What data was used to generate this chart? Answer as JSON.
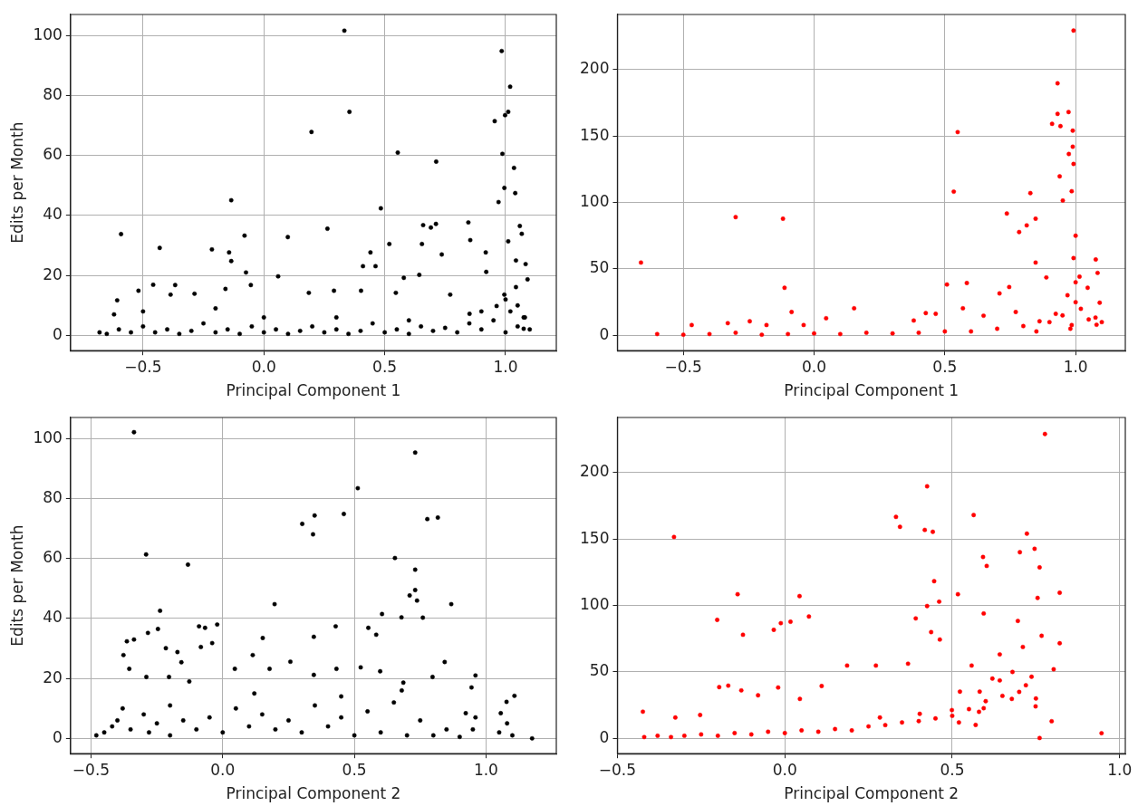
{
  "chart_data": [
    {
      "type": "scatter",
      "xlabel": "Principal Component 1",
      "ylabel": "Edits per Month",
      "color": "#000000",
      "marker": "circle",
      "grid": true,
      "xlim": [
        -0.8,
        1.21
      ],
      "ylim": [
        -5.1,
        107.1
      ],
      "xticks": [
        {
          "value": -0.5,
          "label": "−0.5"
        },
        {
          "value": 0,
          "label": "0.0"
        },
        {
          "value": 0.5,
          "label": "0.5"
        },
        {
          "value": 1,
          "label": "1.0"
        }
      ],
      "yticks": [
        0,
        20,
        40,
        60,
        80,
        100
      ],
      "x": [
        0.354,
        0.333,
        0.984,
        1.019,
        0.955,
        0.998,
        1.011,
        0.197,
        0.554,
        0.713,
        0.987,
        1.035,
        -0.135,
        0.484,
        0.995,
        1.04,
        0.971,
        -0.591,
        -0.431,
        -0.215,
        -0.08,
        0.099,
        0.263,
        0.659,
        0.712,
        0.691,
        0.846,
        0.519,
        0.854,
        0.654,
        -0.144,
        -0.135,
        0.441,
        0.736,
        0.918,
        1.059,
        1.067,
        1.011,
        1.043,
        1.083,
        0.41,
        0.462,
        -0.074,
        0.059,
        0.643,
        0.579,
        0.92,
        -0.367,
        -0.458,
        -0.159,
        -0.054,
        -0.607,
        -0.519,
        -0.386,
        -0.287,
        0.186,
        0.29,
        0.402,
        0.546,
        0.771,
        1.043,
        1.091,
        0.995,
        0.963,
        0.851,
        1.075,
        1.075,
        -0.68,
        -0.65,
        -0.6,
        -0.55,
        -0.5,
        -0.45,
        -0.4,
        -0.35,
        -0.3,
        -0.25,
        -0.2,
        -0.15,
        -0.1,
        -0.05,
        0,
        0.05,
        0.1,
        0.15,
        0.2,
        0.25,
        0.3,
        0.35,
        0.4,
        0.45,
        0.5,
        0.55,
        0.6,
        0.65,
        0.7,
        0.75,
        0.8,
        0.85,
        0.9,
        0.95,
        1.0,
        1.02,
        1.05,
        1.08,
        1.1,
        -0.62,
        -0.5,
        -0.2,
        0,
        0.3,
        0.6,
        0.9,
        1.0,
        1.05
      ],
      "values": [
        74.6,
        101.7,
        94.9,
        83,
        71.5,
        73.5,
        74.6,
        67.9,
        61,
        58,
        60.6,
        55.9,
        45.1,
        42.4,
        49.2,
        47.5,
        44.5,
        33.8,
        29.2,
        28.7,
        33.3,
        32.8,
        35.6,
        36.8,
        37.2,
        36,
        37.7,
        30.5,
        31.8,
        30.5,
        27.7,
        24.8,
        27.7,
        27,
        27.7,
        36.5,
        33.9,
        31.4,
        25,
        23.8,
        23.1,
        23.1,
        21,
        19.7,
        20.2,
        19.2,
        21.2,
        16.8,
        16.9,
        15.5,
        16.8,
        11.7,
        14.9,
        13.6,
        13.9,
        14.2,
        14.9,
        14.9,
        14.2,
        13.6,
        16.1,
        18.7,
        13.6,
        9.8,
        7.2,
        6,
        2.2,
        1,
        0.5,
        2,
        1,
        3,
        1,
        2,
        0.5,
        1.5,
        4,
        1,
        2,
        0.5,
        3,
        1,
        2,
        0.5,
        1.5,
        3,
        1,
        2,
        0.5,
        1.5,
        4,
        1,
        2,
        0.5,
        3,
        1.5,
        2.5,
        1,
        4,
        2,
        5,
        1,
        8,
        3,
        6,
        2,
        7,
        8,
        9,
        6,
        6,
        5,
        8,
        12,
        10
      ]
    },
    {
      "type": "scatter",
      "xlabel": "Principal Component 1",
      "color": "#ff0000",
      "marker": "circle",
      "grid": true,
      "xlim": [
        -0.752,
        1.19
      ],
      "ylim": [
        -11.5,
        241.5
      ],
      "xticks": [
        {
          "value": -0.5,
          "label": "−0.5"
        },
        {
          "value": 0,
          "label": "0.0"
        },
        {
          "value": 0.5,
          "label": "0.5"
        },
        {
          "value": 1,
          "label": "1.0"
        }
      ],
      "yticks": [
        0,
        50,
        100,
        150,
        200
      ],
      "x": [
        0.992,
        0.931,
        0.931,
        0.973,
        0.91,
        0.942,
        0.989,
        0.549,
        0.989,
        0.974,
        0.992,
        0.939,
        0.534,
        0.827,
        0.951,
        0.985,
        0.737,
        0.847,
        0.813,
        0.784,
        -0.3,
        -0.119,
        -0.662,
        -0.113,
        -0.086,
        0.046,
        0.153,
        0.508,
        0.584,
        0.569,
        0.847,
        1.077,
        1.084,
        0.746,
        0.709,
        0.888,
        1,
        0.992,
        1.015,
        1.046,
        1.092,
        1.076,
        0.969,
        0.924,
        0.862,
        0.985,
        -0.468,
        -0.33,
        -0.246,
        -0.182,
        -0.04,
        0.381,
        0.427,
        0.465,
        0.648,
        0.771,
        -0.6,
        -0.5,
        -0.4,
        -0.3,
        -0.2,
        -0.1,
        0,
        0.1,
        0.2,
        0.3,
        0.4,
        0.5,
        0.6,
        0.7,
        0.8,
        0.9,
        0.95,
        1.0,
        1.0,
        1.02,
        1.05,
        1.08,
        1.1,
        0.98,
        0.85
      ],
      "values": [
        229.4,
        189.7,
        166.7,
        168.1,
        159.2,
        157.5,
        154.1,
        153,
        142,
        136.5,
        129,
        119.7,
        108.2,
        107.1,
        101.5,
        108.5,
        91.7,
        87.8,
        82.8,
        77.8,
        89,
        87.8,
        54.8,
        35.8,
        17.6,
        12.9,
        20.4,
        38.3,
        39.4,
        20.4,
        54.8,
        57.1,
        47,
        36.4,
        31.6,
        43.6,
        75,
        58.2,
        44.2,
        35.8,
        24.6,
        13.4,
        30.2,
        16.2,
        10.6,
        7.8,
        7.8,
        9.2,
        10.6,
        7.8,
        7.8,
        11.2,
        16.8,
        16.2,
        14.8,
        17.6,
        1,
        0.5,
        1,
        2,
        0.5,
        1,
        1.5,
        1,
        2,
        1.5,
        2,
        3,
        3,
        5,
        7,
        10,
        15,
        25,
        40,
        20,
        12,
        8,
        10,
        5,
        3
      ]
    },
    {
      "type": "scatter",
      "xlabel": "Principal Component 2",
      "ylabel": "Edits per Month",
      "color": "#000000",
      "marker": "circle",
      "grid": true,
      "xlim": [
        -0.578,
        1.267
      ],
      "ylim": [
        -5.1,
        107.1
      ],
      "xticks": [
        {
          "value": -0.5,
          "label": "−0.5"
        },
        {
          "value": 0,
          "label": "0.0"
        },
        {
          "value": 0.5,
          "label": "0.5"
        },
        {
          "value": 1,
          "label": "1.0"
        }
      ],
      "yticks": [
        0,
        20,
        40,
        60,
        80,
        100
      ],
      "x": [
        -0.337,
        0.731,
        0.513,
        0.46,
        0.349,
        0.302,
        0.343,
        0.777,
        0.817,
        -0.291,
        -0.132,
        0.654,
        0.731,
        0.731,
        0.71,
        0.738,
        0.868,
        0.197,
        -0.238,
        0.605,
        0.679,
        0.76,
        -0.09,
        -0.067,
        -0.021,
        0.429,
        -0.246,
        -0.364,
        -0.337,
        -0.284,
        0.152,
        0.346,
        0.553,
        0.583,
        -0.083,
        -0.216,
        -0.04,
        -0.377,
        -0.172,
        -0.157,
        0.114,
        -0.355,
        0.046,
        0.178,
        0.257,
        0.432,
        0.524,
        0.598,
        0.843,
        0.96,
        0.945,
        1.078,
        1.108,
        0.923,
        1.056,
        1.175,
        -0.204,
        -0.29,
        -0.127,
        0.346,
        0.686,
        0.797,
        -0.48,
        -0.45,
        -0.42,
        -0.4,
        -0.35,
        -0.3,
        -0.28,
        -0.25,
        -0.2,
        -0.15,
        -0.1,
        -0.05,
        0,
        0.05,
        0.1,
        0.15,
        0.2,
        0.25,
        0.3,
        0.35,
        0.4,
        0.45,
        0.5,
        0.55,
        0.6,
        0.65,
        0.7,
        0.75,
        0.8,
        0.85,
        0.9,
        0.95,
        0.96,
        1.05,
        1.08,
        1.1,
        -0.38,
        -0.2,
        0.12,
        0.45,
        0.68
      ],
      "values": [
        102.2,
        95.4,
        83.5,
        74.9,
        74.4,
        71.6,
        68.1,
        73.2,
        73.7,
        61.4,
        58,
        60.2,
        56.3,
        49.5,
        47.7,
        46,
        44.8,
        44.8,
        42.6,
        41.5,
        40.4,
        40.3,
        37.4,
        36.9,
        38,
        37.4,
        36.5,
        32.4,
        33,
        35.2,
        33.5,
        33.9,
        36.9,
        34.6,
        30.5,
        30.1,
        31.8,
        27.8,
        28.8,
        25.4,
        27.8,
        23.2,
        23.2,
        23.2,
        25.6,
        23.2,
        23.7,
        22.4,
        25.5,
        21,
        17,
        12.2,
        14.2,
        8.4,
        8.4,
        0,
        20.5,
        20.5,
        19,
        21.2,
        18.6,
        20.5,
        1,
        2,
        4,
        6,
        3,
        8,
        2,
        5,
        1,
        6,
        3,
        7,
        2,
        10,
        4,
        8,
        3,
        6,
        2,
        11,
        4,
        7,
        1,
        9,
        2,
        12,
        1,
        6,
        1,
        3,
        0.5,
        3,
        7,
        2,
        5,
        1,
        10,
        11,
        15,
        14,
        16
      ]
    },
    {
      "type": "scatter",
      "xlabel": "Principal Component 2",
      "color": "#ff0000",
      "marker": "circle",
      "grid": true,
      "xlim": [
        -0.5,
        1.017
      ],
      "ylim": [
        -11.5,
        241.5
      ],
      "xticks": [
        {
          "value": -0.5,
          "label": "−0.5"
        },
        {
          "value": 0,
          "label": "0.0"
        },
        {
          "value": 0.5,
          "label": "0.5"
        },
        {
          "value": 1,
          "label": "1.0"
        }
      ],
      "yticks": [
        0,
        50,
        100,
        150,
        200
      ],
      "x": [
        0.777,
        0.425,
        0.332,
        0.344,
        0.564,
        0.418,
        0.442,
        -0.331,
        0.723,
        0.746,
        0.702,
        0.592,
        0.761,
        0.603,
        0.446,
        -0.141,
        0.044,
        0.517,
        0.821,
        0.755,
        0.461,
        0.425,
        0.072,
        0.391,
        -0.202,
        -0.012,
        0.017,
        -0.033,
        -0.125,
        0.437,
        0.463,
        0.594,
        0.696,
        0.767,
        0.821,
        0.711,
        0.642,
        0.186,
        0.272,
        0.368,
        0.558,
        0.803,
        0.737,
        0.642,
        0.523,
        0.582,
        0.678,
        0.749,
        0.797,
        0.946,
        -0.196,
        -0.169,
        -0.13,
        -0.02,
        0.11,
        -0.08,
        0.045,
        -0.424,
        -0.327,
        -0.253,
        0.284,
        0.403,
        0.499,
        0.594,
        0.57,
        0.761,
        -0.42,
        -0.38,
        -0.34,
        -0.3,
        -0.25,
        -0.2,
        -0.15,
        -0.1,
        -0.05,
        0,
        0.05,
        0.1,
        0.15,
        0.2,
        0.25,
        0.3,
        0.35,
        0.4,
        0.45,
        0.5,
        0.55,
        0.6,
        0.65,
        0.7,
        0.75,
        0.62,
        0.68,
        0.72,
        0.58,
        0.52
      ],
      "values": [
        229.1,
        189.7,
        166.7,
        159.2,
        168.1,
        156.9,
        155.5,
        151.6,
        154.1,
        142.7,
        140.1,
        136.5,
        128.7,
        129.8,
        118.3,
        108.5,
        107.1,
        108.5,
        109.6,
        105.7,
        102.9,
        99.6,
        91.7,
        90.3,
        89.2,
        86.7,
        87.8,
        81.7,
        78,
        80,
        74.4,
        94,
        88.4,
        77.2,
        71.6,
        68.8,
        63.2,
        54.8,
        54.8,
        56.2,
        54.8,
        52,
        46.4,
        43.6,
        35.2,
        35.2,
        29.7,
        24.1,
        12.9,
        3.9,
        38.6,
        39.7,
        36.1,
        38.3,
        39.4,
        32.4,
        29.7,
        20.1,
        15.7,
        17.6,
        15.7,
        18.5,
        21.3,
        22.7,
        10.1,
        0.3,
        1,
        2,
        1,
        2,
        3,
        2,
        4,
        3,
        5,
        4,
        6,
        5,
        7,
        6,
        9,
        10,
        12,
        13,
        15,
        17,
        22,
        28,
        32,
        35,
        30,
        45,
        50,
        40,
        20,
        12
      ]
    }
  ]
}
